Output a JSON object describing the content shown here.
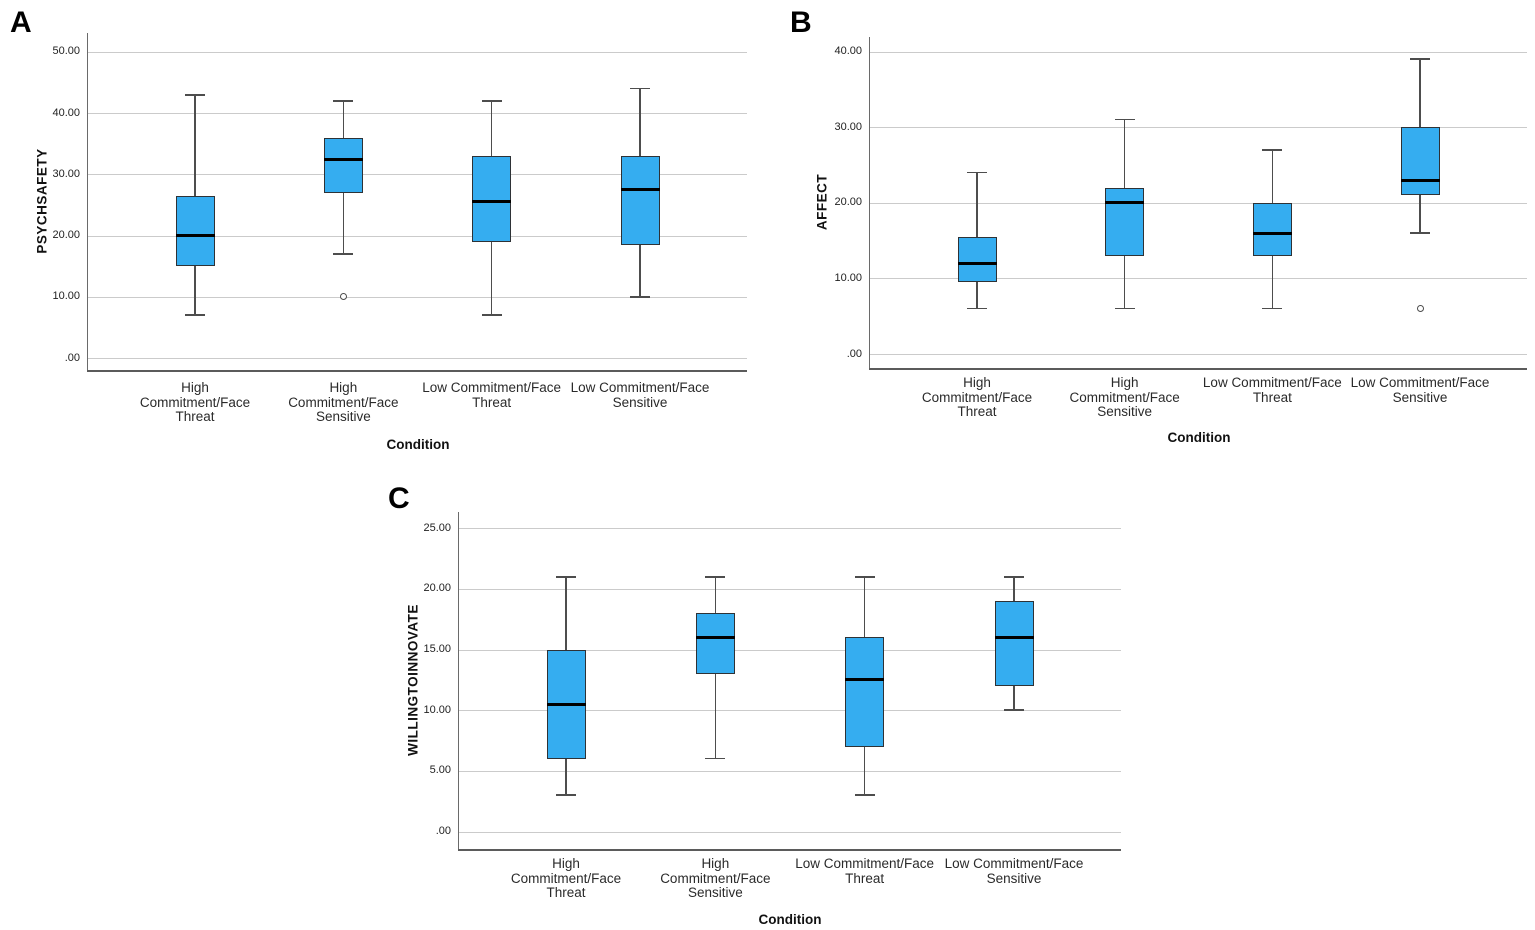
{
  "colors": {
    "box_fill": "#35ADF0",
    "box_border": "#2e3236",
    "median": "#000000",
    "whisker": "#4d4d4d",
    "gridline": "#cbcbcb",
    "axis": "#5b5b5b",
    "background": "#ffffff",
    "text": "#111111"
  },
  "chart_data": [
    {
      "panel": "A",
      "type": "box",
      "ylabel": "PSYCHSAFETY",
      "xlabel": "Condition",
      "grid": "horizontal",
      "legend": "none",
      "yticks": [
        0,
        10,
        20,
        30,
        40,
        50
      ],
      "ytick_labels": [
        ".00",
        "10.00",
        "20.00",
        "30.00",
        "40.00",
        "50.00"
      ],
      "ylim": [
        -1.96,
        53.1
      ],
      "categories": [
        "High\nCommitment/Face\nThreat",
        "High\nCommitment/Face\nSensitive",
        "Low Commitment/Face\nThreat",
        "Low Commitment/Face\nSensitive"
      ],
      "boxes": [
        {
          "whisker_low": 7,
          "q1": 15,
          "median": 20,
          "q3": 26.5,
          "whisker_high": 43,
          "outliers": []
        },
        {
          "whisker_low": 17,
          "q1": 27,
          "median": 32.5,
          "q3": 36,
          "whisker_high": 42,
          "outliers": [
            10
          ]
        },
        {
          "whisker_low": 7,
          "q1": 19,
          "median": 25.5,
          "q3": 33,
          "whisker_high": 42,
          "outliers": []
        },
        {
          "whisker_low": 10,
          "q1": 18.5,
          "median": 27.5,
          "q3": 33,
          "whisker_high": 44,
          "outliers": []
        }
      ]
    },
    {
      "panel": "B",
      "type": "box",
      "ylabel": "AFFECT",
      "xlabel": "Condition",
      "grid": "horizontal",
      "legend": "none",
      "yticks": [
        0,
        10,
        20,
        30,
        40
      ],
      "ytick_labels": [
        ".00",
        "10.00",
        "20.00",
        "30.00",
        "40.00"
      ],
      "ylim": [
        -1.85,
        41.93
      ],
      "categories": [
        "High\nCommitment/Face\nThreat",
        "High\nCommitment/Face\nSensitive",
        "Low Commitment/Face\nThreat",
        "Low Commitment/Face\nSensitive"
      ],
      "boxes": [
        {
          "whisker_low": 6,
          "q1": 9.5,
          "median": 12,
          "q3": 15.5,
          "whisker_high": 24,
          "outliers": []
        },
        {
          "whisker_low": 6,
          "q1": 13,
          "median": 20,
          "q3": 22,
          "whisker_high": 31,
          "outliers": []
        },
        {
          "whisker_low": 6,
          "q1": 13,
          "median": 16,
          "q3": 20,
          "whisker_high": 27,
          "outliers": []
        },
        {
          "whisker_low": 16,
          "q1": 21,
          "median": 23,
          "q3": 30,
          "whisker_high": 39,
          "outliers": [
            6
          ]
        }
      ]
    },
    {
      "panel": "C",
      "type": "box",
      "ylabel": "WILLINGTOINNOVATE",
      "xlabel": "Condition",
      "grid": "horizontal",
      "legend": "none",
      "yticks": [
        0,
        5,
        10,
        15,
        20,
        25
      ],
      "ytick_labels": [
        ".00",
        "5.00",
        "10.00",
        "15.00",
        "20.00",
        "25.00"
      ],
      "ylim": [
        -1.44,
        26.34
      ],
      "categories": [
        "High\nCommitment/Face\nThreat",
        "High\nCommitment/Face\nSensitive",
        "Low Commitment/Face\nThreat",
        "Low Commitment/Face\nSensitive"
      ],
      "boxes": [
        {
          "whisker_low": 3,
          "q1": 6,
          "median": 10.5,
          "q3": 15,
          "whisker_high": 21,
          "outliers": []
        },
        {
          "whisker_low": 6,
          "q1": 13,
          "median": 16,
          "q3": 18,
          "whisker_high": 21,
          "outliers": []
        },
        {
          "whisker_low": 3,
          "q1": 7,
          "median": 12.5,
          "q3": 16,
          "whisker_high": 21,
          "outliers": []
        },
        {
          "whisker_low": 10,
          "q1": 12,
          "median": 16,
          "q3": 19,
          "whisker_high": 21,
          "outliers": []
        }
      ]
    }
  ]
}
